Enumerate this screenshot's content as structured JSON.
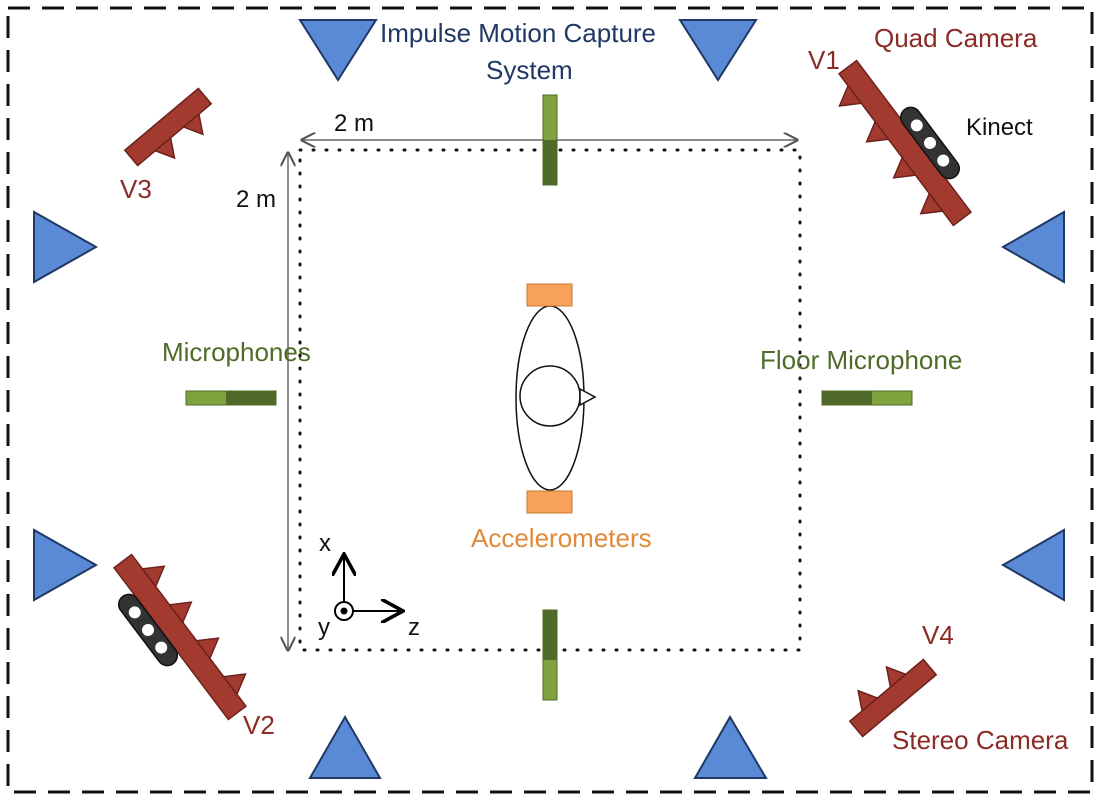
{
  "labels": {
    "impulse_line1": "Impulse Motion Capture",
    "impulse_line2": "System",
    "quad_camera": "Quad Camera",
    "kinect": "Kinect",
    "stereo_camera": "Stereo Camera",
    "microphones": "Microphones",
    "floor_microphone": "Floor Microphone",
    "accelerometers": "Accelerometers",
    "v1": "V1",
    "v2": "V2",
    "v3": "V3",
    "v4": "V4",
    "dim_width": "2 m",
    "dim_height": "2 m",
    "axis_x": "x",
    "axis_y": "y",
    "axis_z": "z"
  },
  "colors": {
    "mocap_fill": "#5a8ad6",
    "mocap_stroke": "#1f3864",
    "camera_fill": "#a33a30",
    "camera_stroke": "#6b221c",
    "mic_light": "#7ea23e",
    "mic_dark": "#4f6a28",
    "accelerometer": "#f6a25a",
    "kinect_body": "#333333"
  },
  "icons": {
    "mocap": "triangle-marker-icon",
    "camera": "camera-array-icon",
    "kinect": "kinect-sensor-icon",
    "microphone": "microphone-bar-icon",
    "accelerometer": "accelerometer-block-icon",
    "subject": "subject-top-view-icon"
  }
}
